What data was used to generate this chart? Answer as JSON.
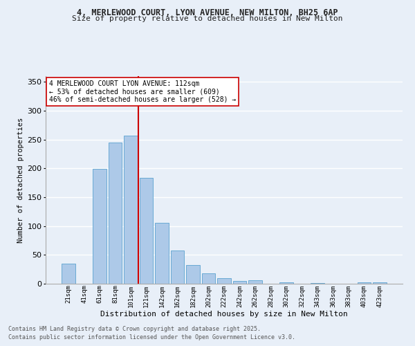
{
  "title_line1": "4, MERLEWOOD COURT, LYON AVENUE, NEW MILTON, BH25 6AP",
  "title_line2": "Size of property relative to detached houses in New Milton",
  "xlabel": "Distribution of detached houses by size in New Milton",
  "ylabel": "Number of detached properties",
  "bar_labels": [
    "21sqm",
    "41sqm",
    "61sqm",
    "81sqm",
    "101sqm",
    "121sqm",
    "142sqm",
    "162sqm",
    "182sqm",
    "202sqm",
    "222sqm",
    "242sqm",
    "262sqm",
    "282sqm",
    "302sqm",
    "322sqm",
    "343sqm",
    "363sqm",
    "383sqm",
    "403sqm",
    "423sqm"
  ],
  "bar_values": [
    35,
    0,
    199,
    245,
    257,
    184,
    106,
    58,
    33,
    18,
    10,
    5,
    6,
    0,
    3,
    0,
    1,
    0,
    0,
    2,
    2
  ],
  "bar_color": "#adc9e8",
  "bar_edge_color": "#6aaad4",
  "vline_x_index": 4.5,
  "vline_color": "#cc0000",
  "annotation_text": "4 MERLEWOOD COURT LYON AVENUE: 112sqm\n← 53% of detached houses are smaller (609)\n46% of semi-detached houses are larger (528) →",
  "annotation_box_facecolor": "#ffffff",
  "annotation_box_edgecolor": "#cc0000",
  "ylim": [
    0,
    360
  ],
  "yticks": [
    0,
    50,
    100,
    150,
    200,
    250,
    300,
    350
  ],
  "bg_color": "#e8eff8",
  "grid_color": "#ffffff",
  "footer_line1": "Contains HM Land Registry data © Crown copyright and database right 2025.",
  "footer_line2": "Contains public sector information licensed under the Open Government Licence v3.0."
}
